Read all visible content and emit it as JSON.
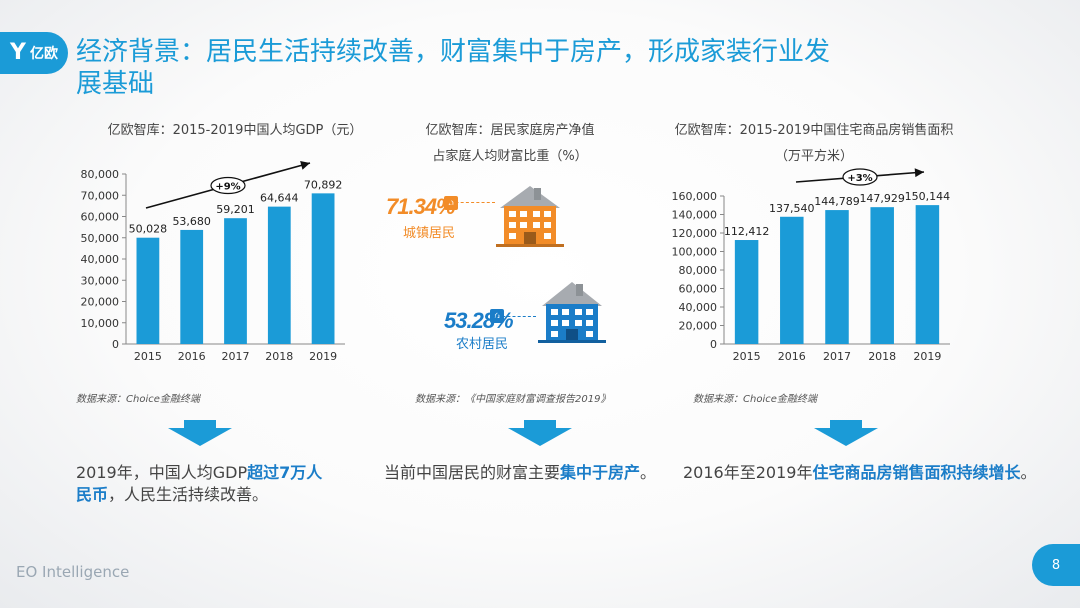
{
  "brand": {
    "logo_text": "亿欧",
    "footer": "EO Intelligence",
    "page_number": "8"
  },
  "title": "经济背景：居民生活持续改善，财富集中于房产，形成家装行业发展基础",
  "charts": {
    "gdp": {
      "title": "亿欧智库：2015-2019中国人均GDP（元）",
      "badge": "+9%",
      "source": "数据来源：Choice金融终端"
    },
    "wealth": {
      "title_line1": "亿欧智库：居民家庭房产净值",
      "title_line2": "占家庭人均财富比重（%）",
      "urban_value": "71.34%",
      "urban_label": "城镇居民",
      "rural_value": "53.28%",
      "rural_label": "农村居民",
      "source": "数据来源：《中国家庭财富调查报告2019》"
    },
    "housing": {
      "title_line1": "亿欧智库：2015-2019中国住宅商品房销售面积",
      "title_line2": "（万平方米）",
      "badge": "+3%",
      "source": "数据来源：Choice金融终端"
    }
  },
  "summaries": {
    "s1_pre": "2019年，中国人均GDP",
    "s1_hl": "超过7万人民币",
    "s1_post": "，人民生活持续改善。",
    "s2_pre": "当前中国居民的财富主要",
    "s2_hl": "集中于房产",
    "s2_post": "。",
    "s3_pre": "2016年至2019年",
    "s3_hl": "住宅商品房销售面积持续增长",
    "s3_post": "。"
  },
  "colors": {
    "accent": "#1b9bd7",
    "bar": "#1b9bd7",
    "orange": "#f28c28",
    "highlight": "#1b7dc8"
  },
  "chart_data": [
    {
      "type": "bar",
      "categories": [
        "2015",
        "2016",
        "2017",
        "2018",
        "2019"
      ],
      "values": [
        50028,
        53680,
        59201,
        64644,
        70892
      ],
      "value_labels": [
        "50,028",
        "53,680",
        "59,201",
        "64,644",
        "70,892"
      ],
      "yticks": [
        "0",
        "10,000",
        "20,000",
        "30,000",
        "40,000",
        "50,000",
        "60,000",
        "70,000",
        "80,000"
      ],
      "ylim": [
        0,
        80000
      ],
      "title": "亿欧智库：2015-2019中国人均GDP（元）",
      "annotation": "+9%"
    },
    {
      "type": "bar",
      "categories": [
        "2015",
        "2016",
        "2017",
        "2018",
        "2019"
      ],
      "values": [
        112412,
        137540,
        144789,
        147929,
        150144
      ],
      "value_labels": [
        "112,412",
        "137,540",
        "144,789",
        "147,929",
        "150,144"
      ],
      "yticks": [
        "0",
        "20,000",
        "40,000",
        "60,000",
        "80,000",
        "100,000",
        "120,000",
        "140,000",
        "160,000"
      ],
      "ylim": [
        0,
        160000
      ],
      "title": "亿欧智库：2015-2019中国住宅商品房销售面积（万平方米）",
      "annotation": "+3%"
    }
  ]
}
